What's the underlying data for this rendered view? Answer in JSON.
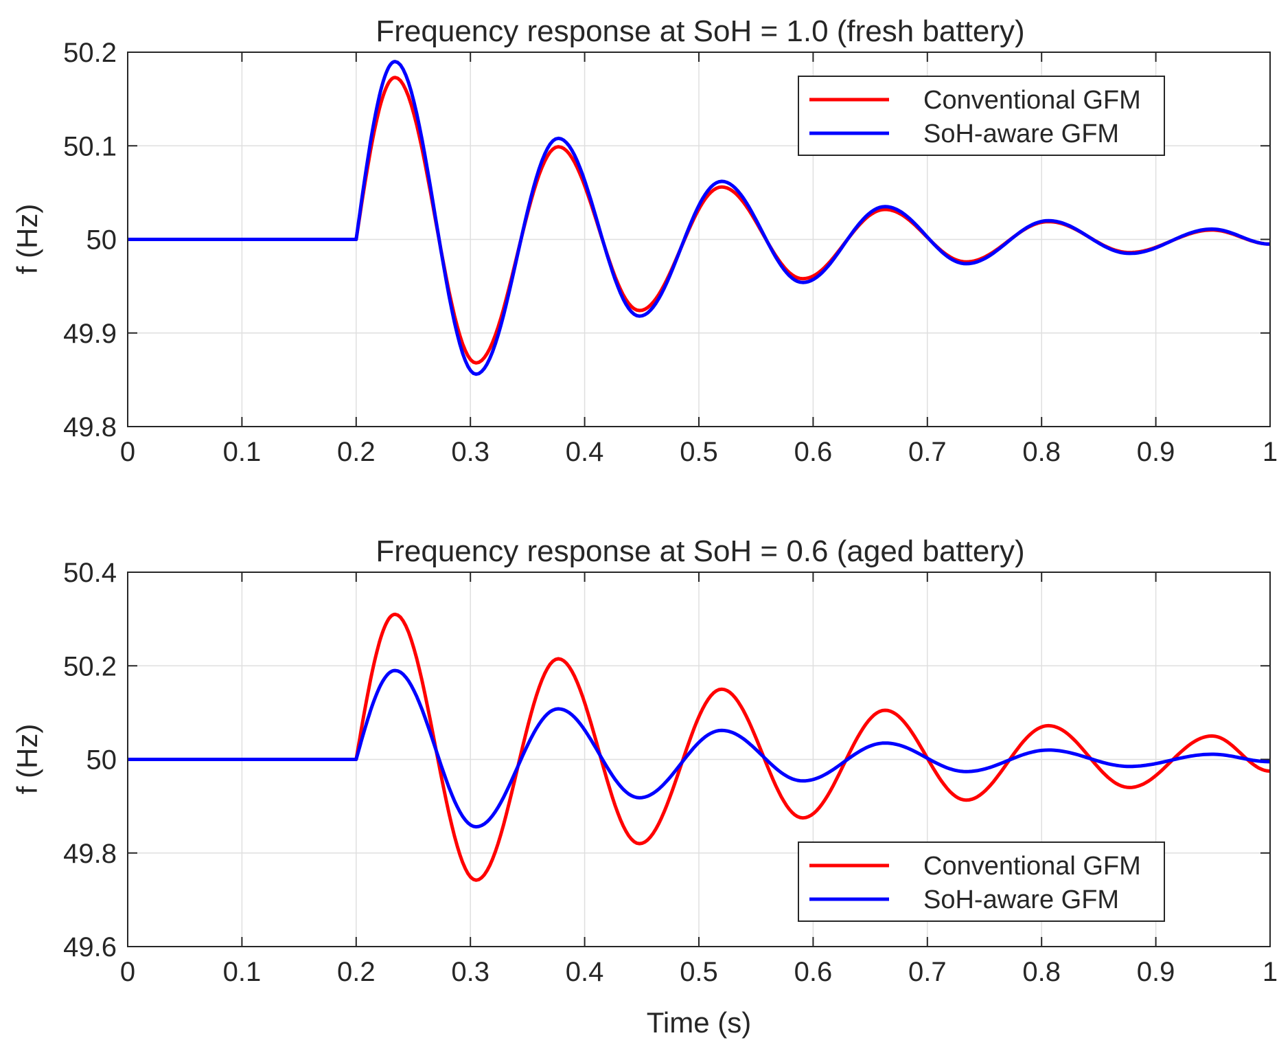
{
  "chart_data": [
    {
      "type": "line",
      "title": "Frequency response at SoH = 1.0 (fresh battery)",
      "xlabel": "",
      "ylabel": "f (Hz)",
      "xlim": [
        0,
        1
      ],
      "ylim": [
        49.8,
        50.2
      ],
      "xticks": [
        "0",
        "0.1",
        "0.2",
        "0.3",
        "0.4",
        "0.5",
        "0.6",
        "0.7",
        "0.8",
        "0.9",
        "1"
      ],
      "yticks": [
        "49.8",
        "49.9",
        "50",
        "50.1",
        "50.2"
      ],
      "grid": true,
      "legend_position": "top-right",
      "disturbance_time": 0.2,
      "series": [
        {
          "name": "Conventional GFM",
          "color": "#ff0000",
          "base": 50,
          "peaks": [
            [
              0.234,
              50.173
            ],
            [
              0.305,
              49.868
            ],
            [
              0.377,
              50.099
            ],
            [
              0.448,
              49.924
            ],
            [
              0.52,
              50.056
            ],
            [
              0.591,
              49.958
            ],
            [
              0.663,
              50.032
            ],
            [
              0.734,
              49.976
            ],
            [
              0.806,
              50.019
            ],
            [
              0.877,
              49.986
            ],
            [
              0.949,
              50.01
            ],
            [
              1.0,
              49.995
            ]
          ]
        },
        {
          "name": "SoH-aware GFM",
          "color": "#0000ff",
          "base": 50,
          "peaks": [
            [
              0.234,
              50.19
            ],
            [
              0.305,
              49.856
            ],
            [
              0.377,
              50.108
            ],
            [
              0.448,
              49.918
            ],
            [
              0.52,
              50.062
            ],
            [
              0.591,
              49.954
            ],
            [
              0.663,
              50.035
            ],
            [
              0.734,
              49.974
            ],
            [
              0.806,
              50.02
            ],
            [
              0.877,
              49.985
            ],
            [
              0.949,
              50.011
            ],
            [
              1.0,
              49.995
            ]
          ]
        }
      ]
    },
    {
      "type": "line",
      "title": "Frequency response at SoH = 0.6 (aged battery)",
      "xlabel": "Time (s)",
      "ylabel": "f (Hz)",
      "xlim": [
        0,
        1
      ],
      "ylim": [
        49.6,
        50.4
      ],
      "xticks": [
        "0",
        "0.1",
        "0.2",
        "0.3",
        "0.4",
        "0.5",
        "0.6",
        "0.7",
        "0.8",
        "0.9",
        "1"
      ],
      "yticks": [
        "49.6",
        "49.8",
        "50",
        "50.2",
        "50.4"
      ],
      "grid": true,
      "legend_position": "bottom-right",
      "disturbance_time": 0.2,
      "series": [
        {
          "name": "Conventional GFM",
          "color": "#ff0000",
          "base": 50,
          "peaks": [
            [
              0.234,
              50.31
            ],
            [
              0.305,
              49.742
            ],
            [
              0.377,
              50.215
            ],
            [
              0.448,
              49.82
            ],
            [
              0.52,
              50.15
            ],
            [
              0.591,
              49.875
            ],
            [
              0.663,
              50.105
            ],
            [
              0.734,
              49.913
            ],
            [
              0.806,
              50.072
            ],
            [
              0.877,
              49.94
            ],
            [
              0.949,
              50.05
            ],
            [
              1.0,
              49.975
            ]
          ]
        },
        {
          "name": "SoH-aware GFM",
          "color": "#0000ff",
          "base": 50,
          "peaks": [
            [
              0.234,
              50.19
            ],
            [
              0.305,
              49.856
            ],
            [
              0.377,
              50.108
            ],
            [
              0.448,
              49.918
            ],
            [
              0.52,
              50.062
            ],
            [
              0.591,
              49.954
            ],
            [
              0.663,
              50.035
            ],
            [
              0.734,
              49.974
            ],
            [
              0.806,
              50.02
            ],
            [
              0.877,
              49.985
            ],
            [
              0.949,
              50.011
            ],
            [
              1.0,
              49.995
            ]
          ]
        }
      ]
    }
  ]
}
